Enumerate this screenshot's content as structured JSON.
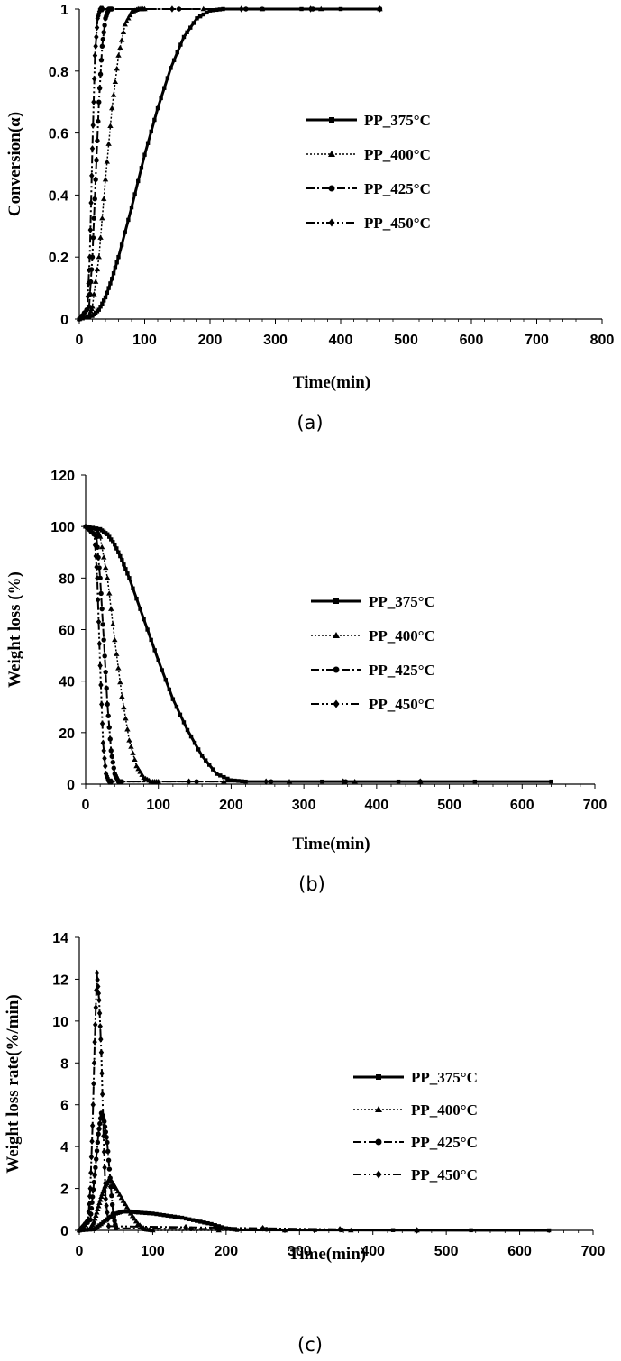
{
  "panels": [
    {
      "tag": "(a)",
      "chart_data": {
        "type": "line",
        "xlabel": "Time(min)",
        "ylabel": "Conversion(α)",
        "xlim": [
          0,
          800
        ],
        "ylim": [
          0,
          1
        ],
        "xticks": [
          "0",
          "100",
          "200",
          "300",
          "400",
          "500",
          "600",
          "700",
          "800"
        ],
        "yticks": [
          "0",
          "0.2",
          "0.4",
          "0.6",
          "0.8",
          "1"
        ],
        "legend_position": "center-right",
        "series": [
          {
            "name": "PP_375°C",
            "marker": "square",
            "dash": "solid",
            "x": [
              0,
              20,
              30,
              40,
              50,
              60,
              80,
              100,
              120,
              140,
              160,
              180,
              200,
              220,
              460
            ],
            "y": [
              0,
              0.01,
              0.03,
              0.07,
              0.13,
              0.2,
              0.36,
              0.53,
              0.68,
              0.81,
              0.91,
              0.97,
              0.995,
              1,
              1
            ]
          },
          {
            "name": "PP_400°C",
            "marker": "triangle",
            "dash": "dotted",
            "x": [
              0,
              15,
              20,
              30,
              40,
              50,
              60,
              70,
              80,
              90,
              100,
              460
            ],
            "y": [
              0,
              0.01,
              0.04,
              0.2,
              0.45,
              0.68,
              0.85,
              0.95,
              0.99,
              1,
              1,
              1
            ]
          },
          {
            "name": "PP_425°C",
            "marker": "circle",
            "dash": "dashdot",
            "x": [
              0,
              15,
              20,
              25,
              30,
              35,
              40,
              45,
              50,
              460
            ],
            "y": [
              0,
              0.04,
              0.2,
              0.45,
              0.7,
              0.88,
              0.97,
              1,
              1,
              1
            ]
          },
          {
            "name": "PP_450°C",
            "marker": "diamond",
            "dash": "dashdotdot",
            "x": [
              0,
              12,
              16,
              20,
              24,
              28,
              32,
              36,
              460
            ],
            "y": [
              0,
              0.03,
              0.2,
              0.55,
              0.85,
              0.97,
              1,
              1,
              1
            ]
          }
        ]
      }
    },
    {
      "tag": "(b)",
      "chart_data": {
        "type": "line",
        "xlabel": "Time(min)",
        "ylabel": "Weight loss (%)",
        "xlim": [
          0,
          700
        ],
        "ylim": [
          0,
          120
        ],
        "xticks": [
          "0",
          "100",
          "200",
          "300",
          "400",
          "500",
          "600",
          "700"
        ],
        "yticks": [
          "0",
          "20",
          "40",
          "60",
          "80",
          "100",
          "120"
        ],
        "legend_position": "center-right",
        "series": [
          {
            "name": "PP_375°C",
            "marker": "square",
            "dash": "solid",
            "x": [
              0,
              20,
              30,
              40,
              50,
              60,
              80,
              100,
              120,
              140,
              160,
              180,
              200,
              220,
              640
            ],
            "y": [
              100,
              99,
              97,
              93,
              87,
              80,
              64,
              48,
              33,
              21,
              11,
              4,
              1.5,
              1,
              1
            ]
          },
          {
            "name": "PP_400°C",
            "marker": "triangle",
            "dash": "dotted",
            "x": [
              0,
              15,
              20,
              30,
              40,
              50,
              60,
              70,
              80,
              90,
              100,
              460
            ],
            "y": [
              100,
              99,
              96,
              80,
              56,
              34,
              17,
              7,
              2.5,
              1,
              1,
              1
            ]
          },
          {
            "name": "PP_425°C",
            "marker": "circle",
            "dash": "dashdot",
            "x": [
              0,
              15,
              20,
              25,
              30,
              35,
              40,
              45,
              50,
              460
            ],
            "y": [
              100,
              96,
              80,
              56,
              31,
              13,
              4,
              1,
              1,
              1
            ]
          },
          {
            "name": "PP_450°C",
            "marker": "diamond",
            "dash": "dashdotdot",
            "x": [
              0,
              12,
              16,
              20,
              24,
              28,
              32,
              36,
              460
            ],
            "y": [
              100,
              97,
              80,
              46,
              16,
              4,
              1,
              1,
              1
            ]
          }
        ]
      }
    },
    {
      "tag": "(c)",
      "chart_data": {
        "type": "line",
        "xlabel": "Time(min)",
        "ylabel": "Weight loss rate(%/min)",
        "xlim": [
          0,
          700
        ],
        "ylim": [
          0,
          14
        ],
        "xticks": [
          "0",
          "100",
          "200",
          "300",
          "400",
          "500",
          "600",
          "700"
        ],
        "yticks": [
          "0",
          "2",
          "4",
          "6",
          "8",
          "10",
          "12",
          "14"
        ],
        "legend_position": "center-right",
        "series": [
          {
            "name": "PP_375°C",
            "marker": "square",
            "dash": "solid",
            "x": [
              0,
              20,
              30,
              40,
              50,
              60,
              70,
              80,
              100,
              120,
              140,
              160,
              180,
              200,
              215,
              640
            ],
            "y": [
              0,
              0.05,
              0.3,
              0.6,
              0.8,
              0.9,
              0.9,
              0.85,
              0.8,
              0.7,
              0.6,
              0.45,
              0.3,
              0.1,
              0.02,
              0
            ]
          },
          {
            "name": "PP_400°C",
            "marker": "triangle",
            "dash": "dotted",
            "x": [
              0,
              15,
              20,
              25,
              30,
              35,
              40,
              45,
              50,
              60,
              70,
              80,
              90,
              100,
              460
            ],
            "y": [
              0,
              0.1,
              0.4,
              1,
              1.6,
              2.1,
              2.4,
              2.3,
              2,
              1.4,
              0.8,
              0.3,
              0.05,
              0,
              0
            ]
          },
          {
            "name": "PP_425°C",
            "marker": "circle",
            "dash": "dashdot",
            "x": [
              0,
              15,
              18,
              22,
              26,
              30,
              34,
              38,
              42,
              46,
              50,
              460
            ],
            "y": [
              0,
              0.5,
              1.6,
              3,
              4.6,
              5.6,
              5.2,
              4.2,
              2.5,
              0.8,
              0.1,
              0
            ]
          },
          {
            "name": "PP_450°C",
            "marker": "diamond",
            "dash": "dashdotdot",
            "x": [
              0,
              12,
              15,
              18,
              21,
              24,
              27,
              30,
              33,
              36,
              40,
              460
            ],
            "y": [
              0,
              0.5,
              2,
              5,
              9,
              12.3,
              11,
              8.5,
              4.5,
              1.5,
              0.2,
              0
            ]
          }
        ]
      }
    }
  ]
}
